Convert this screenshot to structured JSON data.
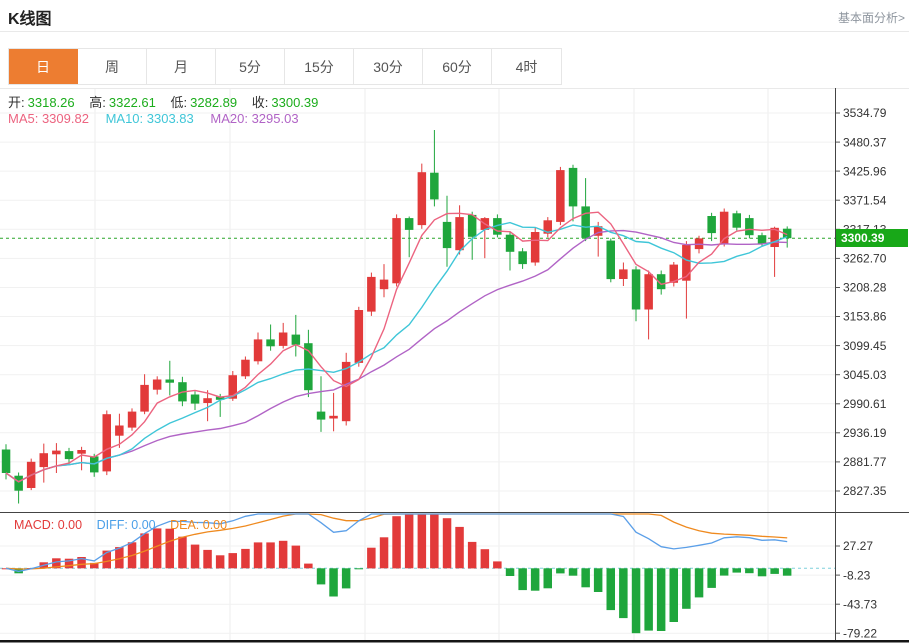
{
  "header": {
    "title": "K线图",
    "link": "基本面分析>"
  },
  "tabs": {
    "items": [
      {
        "label": "日",
        "active": true
      },
      {
        "label": "周",
        "active": false
      },
      {
        "label": "月",
        "active": false
      },
      {
        "label": "5分",
        "active": false
      },
      {
        "label": "15分",
        "active": false
      },
      {
        "label": "30分",
        "active": false
      },
      {
        "label": "60分",
        "active": false
      },
      {
        "label": "4时",
        "active": false
      }
    ]
  },
  "ohlc": {
    "items": [
      {
        "label": "开:",
        "value": "3318.26"
      },
      {
        "label": "高:",
        "value": "3322.61"
      },
      {
        "label": "低:",
        "value": "3282.89"
      },
      {
        "label": "收:",
        "value": "3300.39"
      }
    ]
  },
  "ma": {
    "ma5": "MA5: 3309.82",
    "ma10": "MA10: 3303.83",
    "ma20": "MA20: 3295.03"
  },
  "macd": {
    "macd": "MACD: 0.00",
    "diff": "DIFF: 0.00",
    "dea": "DEA: 0.00"
  },
  "colors": {
    "accent": "#ed7d31",
    "up": "#e23a3a",
    "down": "#1fa63c",
    "ma5": "#ec6480",
    "ma10": "#3fc6d8",
    "ma20": "#b164c6",
    "diff_line": "#5b9fe8",
    "dea_line": "#ef8a1f",
    "price_tag": "#18a818",
    "value_green": "#1cad1c",
    "dotted_price_line": "#2aa62a",
    "dotted_zero_line": "#7fd0dc",
    "link": "#8e959e"
  },
  "chart_data": {
    "type": "candlestick",
    "title": "K线图",
    "period_selected": "日",
    "y_ticks": [
      "3534.79",
      "3480.37",
      "3425.96",
      "3371.54",
      "3317.13",
      "3262.70",
      "3208.28",
      "3153.86",
      "3099.45",
      "3045.03",
      "2990.61",
      "2936.19",
      "2881.77",
      "2827.35"
    ],
    "macd_ticks": [
      "27.27",
      "-8.23",
      "-43.73",
      "-79.22"
    ],
    "current_price": "3300.39",
    "ohlc_current": {
      "open": 3318.26,
      "high": 3322.61,
      "low": 3282.89,
      "close": 3300.39
    },
    "ma_values": {
      "MA5": 3309.82,
      "MA10": 3303.83,
      "MA20": 3295.03
    },
    "overlays": [
      "MA5",
      "MA10",
      "MA20"
    ],
    "indicator": "MACD",
    "macd_values": {
      "MACD": 0.0,
      "DIFF": 0.0,
      "DEA": 0.0
    },
    "grid": true,
    "legend_position": "top-left",
    "candles": [
      [
        2905,
        2915,
        2849,
        2861
      ],
      [
        2856,
        2862,
        2804,
        2828
      ],
      [
        2833,
        2888,
        2829,
        2882
      ],
      [
        2872,
        2916,
        2843,
        2898
      ],
      [
        2896,
        2917,
        2861,
        2903
      ],
      [
        2902,
        2908,
        2877,
        2887
      ],
      [
        2897,
        2910,
        2866,
        2904
      ],
      [
        2892,
        2897,
        2854,
        2862
      ],
      [
        2864,
        2978,
        2857,
        2971
      ],
      [
        2931,
        2972,
        2908,
        2950
      ],
      [
        2946,
        2982,
        2940,
        2976
      ],
      [
        2976,
        3046,
        2971,
        3026
      ],
      [
        3017,
        3042,
        3008,
        3036
      ],
      [
        3036,
        3071,
        3006,
        3030
      ],
      [
        3031,
        3041,
        2986,
        2995
      ],
      [
        3008,
        3014,
        2979,
        2991
      ],
      [
        2992,
        3016,
        2958,
        3001
      ],
      [
        3004,
        3009,
        2966,
        2998
      ],
      [
        3000,
        3052,
        2996,
        3044
      ],
      [
        3042,
        3079,
        3037,
        3073
      ],
      [
        3070,
        3124,
        3064,
        3111
      ],
      [
        3111,
        3139,
        3090,
        3098
      ],
      [
        3099,
        3142,
        3094,
        3124
      ],
      [
        3120,
        3157,
        3079,
        3101
      ],
      [
        3104,
        3129,
        3003,
        3016
      ],
      [
        2976,
        3042,
        2938,
        2961
      ],
      [
        2963,
        3011,
        2939,
        2968
      ],
      [
        2958,
        3086,
        2950,
        3069
      ],
      [
        3067,
        3172,
        3060,
        3166
      ],
      [
        3163,
        3236,
        3155,
        3228
      ],
      [
        3205,
        3252,
        3190,
        3223
      ],
      [
        3216,
        3345,
        3210,
        3338
      ],
      [
        3338,
        3341,
        3265,
        3316
      ],
      [
        3325,
        3440,
        3318,
        3424
      ],
      [
        3423,
        3503,
        3360,
        3373
      ],
      [
        3331,
        3380,
        3247,
        3282
      ],
      [
        3278,
        3362,
        3270,
        3340
      ],
      [
        3344,
        3350,
        3260,
        3303
      ],
      [
        3316,
        3340,
        3263,
        3338
      ],
      [
        3338,
        3345,
        3302,
        3307
      ],
      [
        3307,
        3313,
        3240,
        3275
      ],
      [
        3276,
        3282,
        3243,
        3252
      ],
      [
        3255,
        3320,
        3249,
        3312
      ],
      [
        3309,
        3340,
        3302,
        3334
      ],
      [
        3331,
        3434,
        3325,
        3428
      ],
      [
        3432,
        3438,
        3332,
        3360
      ],
      [
        3360,
        3413,
        3295,
        3301
      ],
      [
        3305,
        3331,
        3266,
        3323
      ],
      [
        3296,
        3300,
        3218,
        3224
      ],
      [
        3224,
        3255,
        3211,
        3242
      ],
      [
        3242,
        3248,
        3145,
        3167
      ],
      [
        3167,
        3240,
        3111,
        3233
      ],
      [
        3233,
        3240,
        3195,
        3205
      ],
      [
        3217,
        3256,
        3210,
        3251
      ],
      [
        3221,
        3295,
        3150,
        3288
      ],
      [
        3280,
        3305,
        3272,
        3300
      ],
      [
        3342,
        3348,
        3295,
        3310
      ],
      [
        3290,
        3356,
        3285,
        3350
      ],
      [
        3347,
        3352,
        3315,
        3320
      ],
      [
        3338,
        3344,
        3300,
        3306
      ],
      [
        3306,
        3311,
        3285,
        3290
      ],
      [
        3284,
        3322,
        3228,
        3320
      ],
      [
        3318.26,
        3322.61,
        3282.89,
        3300.39
      ]
    ]
  }
}
